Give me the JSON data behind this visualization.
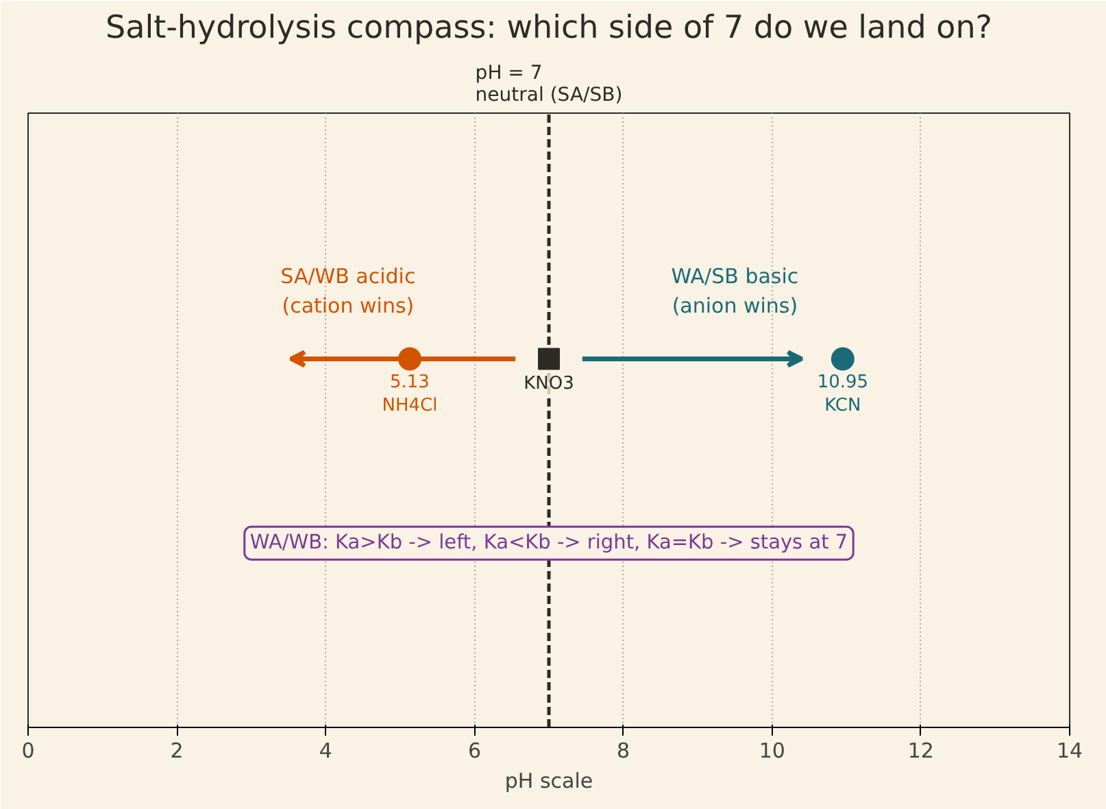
{
  "chart_data": {
    "type": "scatter",
    "orientation": "horizontal",
    "title": "Salt-hydrolysis compass: which side of 7 do we land on?",
    "xlabel": "pH scale",
    "categories": [
      null
    ],
    "xlim": [
      0,
      14
    ],
    "xticks": [
      0,
      2,
      4,
      6,
      8,
      10,
      12,
      14
    ],
    "tick_labels": "x",
    "grid": "x",
    "series": [
      {
        "name": "NH4Cl",
        "color": "#d35400",
        "values": [
          5.13
        ],
        "marker": "circle",
        "value_labels": [
          "5.13"
        ]
      },
      {
        "name": "KNO3",
        "color": "#2e2a26",
        "values": [
          7
        ],
        "marker": "square"
      },
      {
        "name": "KCN",
        "color": "#1a6b78",
        "values": [
          10.95
        ],
        "marker": "circle",
        "value_labels": [
          "10.95"
        ]
      }
    ],
    "ref_lines": [
      {
        "axis": "x",
        "value": 7,
        "label": "pH = 7\nneutral (SA/SB)",
        "color": "#2e2a26",
        "line_style": "dashed"
      }
    ],
    "annotations": [
      "SA/WB acidic\n(cation wins)",
      "WA/SB basic\n(anion wins)",
      "WA/WB: Ka>Kb -> left, Ka<Kb -> right, Ka=Kb -> stays at 7"
    ]
  }
}
